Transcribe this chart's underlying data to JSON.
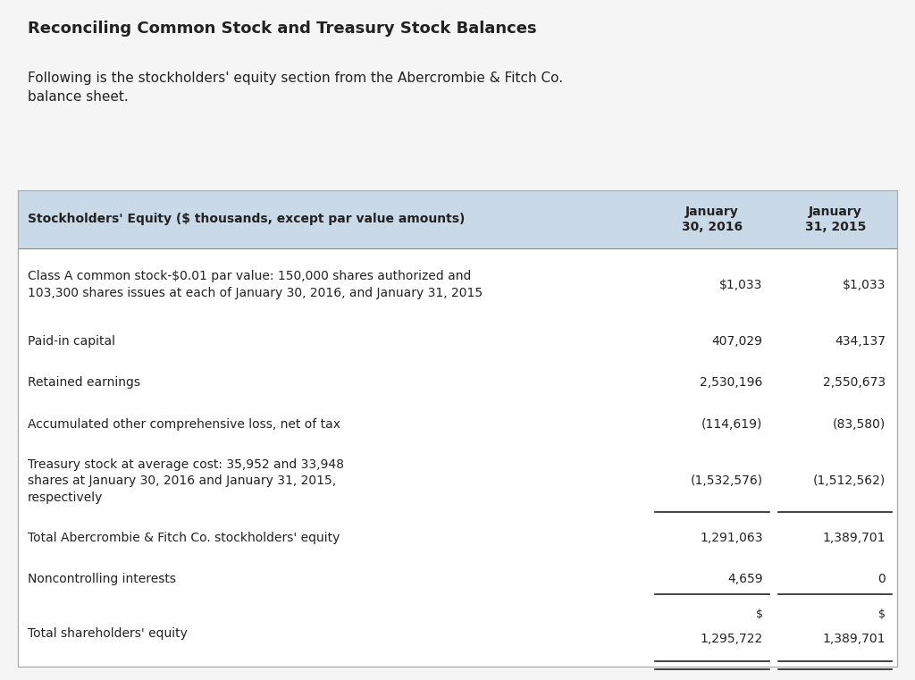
{
  "title": "Reconciling Common Stock and Treasury Stock Balances",
  "subtitle": "Following is the stockholders' equity section from the Abercrombie & Fitch Co.\nbalance sheet.",
  "bg_color": "#f5f5f5",
  "table_bg_color": "#ffffff",
  "header_bg_color": "#c9d9e8",
  "col_header": "Stockholders' Equity ($ thousands, except par value amounts)",
  "col1_header": "January\n30, 2016",
  "col2_header": "January\n31, 2015",
  "rows": [
    {
      "label": "Class A common stock-$0.01 par value: 150,000 shares authorized and\n103,300 shares issues at each of January 30, 2016, and January 31, 2015",
      "col1": "$1,033",
      "col2": "$1,033",
      "underline": false,
      "double_underline": false,
      "label_bold": false,
      "dollar_sign_above": false
    },
    {
      "label": "Paid-in capital",
      "col1": "407,029",
      "col2": "434,137",
      "underline": false,
      "double_underline": false,
      "label_bold": false,
      "dollar_sign_above": false
    },
    {
      "label": "Retained earnings",
      "col1": "2,530,196",
      "col2": "2,550,673",
      "underline": false,
      "double_underline": false,
      "label_bold": false,
      "dollar_sign_above": false
    },
    {
      "label": "Accumulated other comprehensive loss, net of tax",
      "col1": "(114,619)",
      "col2": "(83,580)",
      "underline": false,
      "double_underline": false,
      "label_bold": false,
      "dollar_sign_above": false
    },
    {
      "label": "Treasury stock at average cost: 35,952 and 33,948\nshares at January 30, 2016 and January 31, 2015,\nrespectively",
      "col1": "(1,532,576)",
      "col2": "(1,512,562)",
      "underline": true,
      "double_underline": false,
      "label_bold": false,
      "dollar_sign_above": false
    },
    {
      "label": "Total Abercrombie & Fitch Co. stockholders' equity",
      "col1": "1,291,063",
      "col2": "1,389,701",
      "underline": false,
      "double_underline": false,
      "label_bold": false,
      "dollar_sign_above": false
    },
    {
      "label": "Noncontrolling interests",
      "col1": "4,659",
      "col2": "0",
      "underline": true,
      "double_underline": false,
      "label_bold": false,
      "dollar_sign_above": false
    },
    {
      "label": "Total shareholders' equity",
      "col1": "1,295,722",
      "col2": "1,389,701",
      "underline": false,
      "double_underline": true,
      "label_bold": false,
      "dollar_sign_above": true
    }
  ],
  "title_fontsize": 13,
  "subtitle_fontsize": 11,
  "header_fontsize": 10,
  "cell_fontsize": 10,
  "text_color": "#222222",
  "header_text_color": "#222222"
}
